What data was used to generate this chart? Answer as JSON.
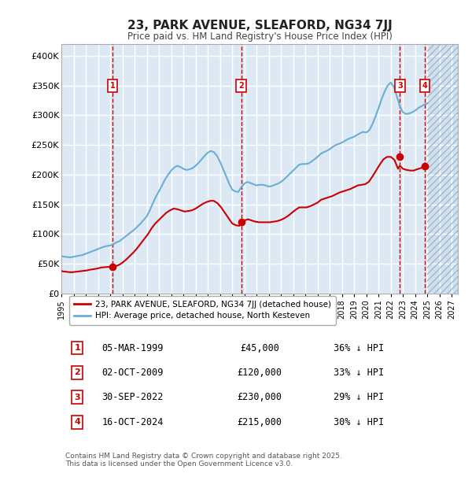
{
  "title": "23, PARK AVENUE, SLEAFORD, NG34 7JJ",
  "subtitle": "Price paid vs. HM Land Registry's House Price Index (HPI)",
  "ylabel": "",
  "ylim": [
    0,
    420000
  ],
  "yticks": [
    0,
    50000,
    100000,
    150000,
    200000,
    250000,
    300000,
    350000,
    400000
  ],
  "ytick_labels": [
    "£0",
    "£50K",
    "£100K",
    "£150K",
    "£200K",
    "£250K",
    "£300K",
    "£350K",
    "£400K"
  ],
  "xlim_start": 1995.0,
  "xlim_end": 2027.5,
  "xticks": [
    1995,
    1996,
    1997,
    1998,
    1999,
    2000,
    2001,
    2002,
    2003,
    2004,
    2005,
    2006,
    2007,
    2008,
    2009,
    2010,
    2011,
    2012,
    2013,
    2014,
    2015,
    2016,
    2017,
    2018,
    2019,
    2020,
    2021,
    2022,
    2023,
    2024,
    2025,
    2026,
    2027
  ],
  "background_color": "#dce9f5",
  "plot_bg_color": "#dce9f5",
  "grid_color": "#ffffff",
  "hpi_color": "#6aaed6",
  "price_color": "#cc0000",
  "sale_marker_color": "#cc0000",
  "vline_color": "#cc0000",
  "label_box_color": "#cc0000",
  "hatch_color": "#b0c8e0",
  "transactions": [
    {
      "num": 1,
      "date_dec": 1999.18,
      "price": 45000,
      "label": "05-MAR-1999",
      "pct": "36% ↓ HPI"
    },
    {
      "num": 2,
      "date_dec": 2009.75,
      "price": 120000,
      "label": "02-OCT-2009",
      "pct": "33% ↓ HPI"
    },
    {
      "num": 3,
      "date_dec": 2022.75,
      "price": 230000,
      "label": "30-SEP-2022",
      "pct": "29% ↓ HPI"
    },
    {
      "num": 4,
      "date_dec": 2024.79,
      "price": 215000,
      "label": "16-OCT-2024",
      "pct": "30% ↓ HPI"
    }
  ],
  "legend_entries": [
    {
      "label": "23, PARK AVENUE, SLEAFORD, NG34 7JJ (detached house)",
      "color": "#cc0000"
    },
    {
      "label": "HPI: Average price, detached house, North Kesteven",
      "color": "#6aaed6"
    }
  ],
  "table_rows": [
    {
      "num": 1,
      "date": "05-MAR-1999",
      "price": "£45,000",
      "pct": "36% ↓ HPI"
    },
    {
      "num": 2,
      "date": "02-OCT-2009",
      "price": "£120,000",
      "pct": "33% ↓ HPI"
    },
    {
      "num": 3,
      "date": "30-SEP-2022",
      "price": "£230,000",
      "pct": "29% ↓ HPI"
    },
    {
      "num": 4,
      "date": "16-OCT-2024",
      "price": "£215,000",
      "pct": "30% ↓ HPI"
    }
  ],
  "footnote": "Contains HM Land Registry data © Crown copyright and database right 2025.\nThis data is licensed under the Open Government Licence v3.0.",
  "hpi_data": {
    "years": [
      1995.0,
      1995.25,
      1995.5,
      1995.75,
      1996.0,
      1996.25,
      1996.5,
      1996.75,
      1997.0,
      1997.25,
      1997.5,
      1997.75,
      1998.0,
      1998.25,
      1998.5,
      1998.75,
      1999.0,
      1999.25,
      1999.5,
      1999.75,
      2000.0,
      2000.25,
      2000.5,
      2000.75,
      2001.0,
      2001.25,
      2001.5,
      2001.75,
      2002.0,
      2002.25,
      2002.5,
      2002.75,
      2003.0,
      2003.25,
      2003.5,
      2003.75,
      2004.0,
      2004.25,
      2004.5,
      2004.75,
      2005.0,
      2005.25,
      2005.5,
      2005.75,
      2006.0,
      2006.25,
      2006.5,
      2006.75,
      2007.0,
      2007.25,
      2007.5,
      2007.75,
      2008.0,
      2008.25,
      2008.5,
      2008.75,
      2009.0,
      2009.25,
      2009.5,
      2009.75,
      2010.0,
      2010.25,
      2010.5,
      2010.75,
      2011.0,
      2011.25,
      2011.5,
      2011.75,
      2012.0,
      2012.25,
      2012.5,
      2012.75,
      2013.0,
      2013.25,
      2013.5,
      2013.75,
      2014.0,
      2014.25,
      2014.5,
      2014.75,
      2015.0,
      2015.25,
      2015.5,
      2015.75,
      2016.0,
      2016.25,
      2016.5,
      2016.75,
      2017.0,
      2017.25,
      2017.5,
      2017.75,
      2018.0,
      2018.25,
      2018.5,
      2018.75,
      2019.0,
      2019.25,
      2019.5,
      2019.75,
      2020.0,
      2020.25,
      2020.5,
      2020.75,
      2021.0,
      2021.25,
      2021.5,
      2021.75,
      2022.0,
      2022.25,
      2022.5,
      2022.75,
      2023.0,
      2023.25,
      2023.5,
      2023.75,
      2024.0,
      2024.25,
      2024.5,
      2024.75,
      2025.0
    ],
    "values": [
      63000,
      62000,
      61500,
      61000,
      62000,
      63000,
      64000,
      65000,
      67000,
      69000,
      71000,
      73000,
      75000,
      77000,
      79000,
      80000,
      81000,
      83000,
      86000,
      88000,
      92000,
      96000,
      100000,
      104000,
      108000,
      113000,
      118000,
      124000,
      130000,
      140000,
      152000,
      163000,
      172000,
      182000,
      192000,
      200000,
      207000,
      212000,
      215000,
      213000,
      210000,
      208000,
      209000,
      211000,
      215000,
      220000,
      226000,
      232000,
      237000,
      240000,
      238000,
      232000,
      222000,
      210000,
      198000,
      185000,
      175000,
      172000,
      171000,
      179000,
      185000,
      188000,
      186000,
      184000,
      182000,
      183000,
      183000,
      182000,
      180000,
      181000,
      183000,
      185000,
      188000,
      192000,
      197000,
      202000,
      207000,
      212000,
      217000,
      218000,
      218000,
      219000,
      222000,
      226000,
      230000,
      235000,
      238000,
      240000,
      243000,
      247000,
      250000,
      252000,
      254000,
      257000,
      260000,
      262000,
      264000,
      267000,
      270000,
      272000,
      271000,
      275000,
      285000,
      298000,
      312000,
      327000,
      340000,
      350000,
      355000,
      348000,
      332000,
      315000,
      305000,
      302000,
      303000,
      305000,
      308000,
      312000,
      315000,
      318000,
      320000
    ]
  },
  "price_data": {
    "years": [
      1995.0,
      1995.1,
      1995.2,
      1995.3,
      1995.5,
      1995.7,
      1995.9,
      1996.1,
      1996.3,
      1996.5,
      1996.7,
      1996.9,
      1997.1,
      1997.3,
      1997.6,
      1997.9,
      1998.1,
      1998.3,
      1998.6,
      1998.9,
      1999.0,
      1999.18,
      1999.4,
      1999.7,
      2000.0,
      2000.3,
      2000.6,
      2000.9,
      2001.2,
      2001.5,
      2001.8,
      2002.1,
      2002.4,
      2002.7,
      2003.0,
      2003.3,
      2003.6,
      2003.9,
      2004.2,
      2004.5,
      2004.8,
      2005.1,
      2005.4,
      2005.7,
      2006.0,
      2006.3,
      2006.6,
      2006.9,
      2007.2,
      2007.5,
      2007.8,
      2008.1,
      2008.4,
      2008.7,
      2009.0,
      2009.3,
      2009.6,
      2009.75,
      2010.0,
      2010.3,
      2010.6,
      2010.9,
      2011.2,
      2011.5,
      2011.8,
      2012.1,
      2012.4,
      2012.7,
      2013.0,
      2013.3,
      2013.6,
      2013.9,
      2014.2,
      2014.5,
      2014.8,
      2015.1,
      2015.4,
      2015.7,
      2016.0,
      2016.3,
      2016.6,
      2016.9,
      2017.2,
      2017.5,
      2017.8,
      2018.1,
      2018.4,
      2018.7,
      2019.0,
      2019.3,
      2019.6,
      2019.9,
      2020.2,
      2020.5,
      2020.8,
      2021.1,
      2021.4,
      2021.7,
      2022.0,
      2022.3,
      2022.6,
      2022.75,
      2023.0,
      2023.3,
      2023.6,
      2023.9,
      2024.0,
      2024.3,
      2024.6,
      2024.79,
      2025.0
    ],
    "values": [
      38000,
      37500,
      37000,
      37000,
      36500,
      36000,
      36000,
      36500,
      37000,
      37500,
      38000,
      38500,
      39000,
      40000,
      41000,
      42000,
      43000,
      44000,
      44500,
      45000,
      45000,
      45000,
      46000,
      48000,
      52000,
      57000,
      63000,
      69000,
      76000,
      84000,
      92000,
      100000,
      110000,
      118000,
      124000,
      130000,
      136000,
      140000,
      143000,
      142000,
      140000,
      138000,
      139000,
      140000,
      143000,
      147000,
      151000,
      154000,
      156000,
      156000,
      152000,
      145000,
      136000,
      127000,
      118000,
      115000,
      114000,
      120000,
      123000,
      125000,
      123000,
      121000,
      120000,
      120000,
      120000,
      120000,
      121000,
      122000,
      124000,
      127000,
      131000,
      136000,
      141000,
      145000,
      145000,
      145000,
      147000,
      150000,
      153000,
      158000,
      160000,
      162000,
      164000,
      167000,
      170000,
      172000,
      174000,
      176000,
      179000,
      182000,
      183000,
      184000,
      188000,
      197000,
      207000,
      217000,
      226000,
      230000,
      230000,
      225000,
      210000,
      215000,
      210000,
      208000,
      207000,
      207000,
      208000,
      210000,
      212000,
      215000,
      212000
    ]
  }
}
